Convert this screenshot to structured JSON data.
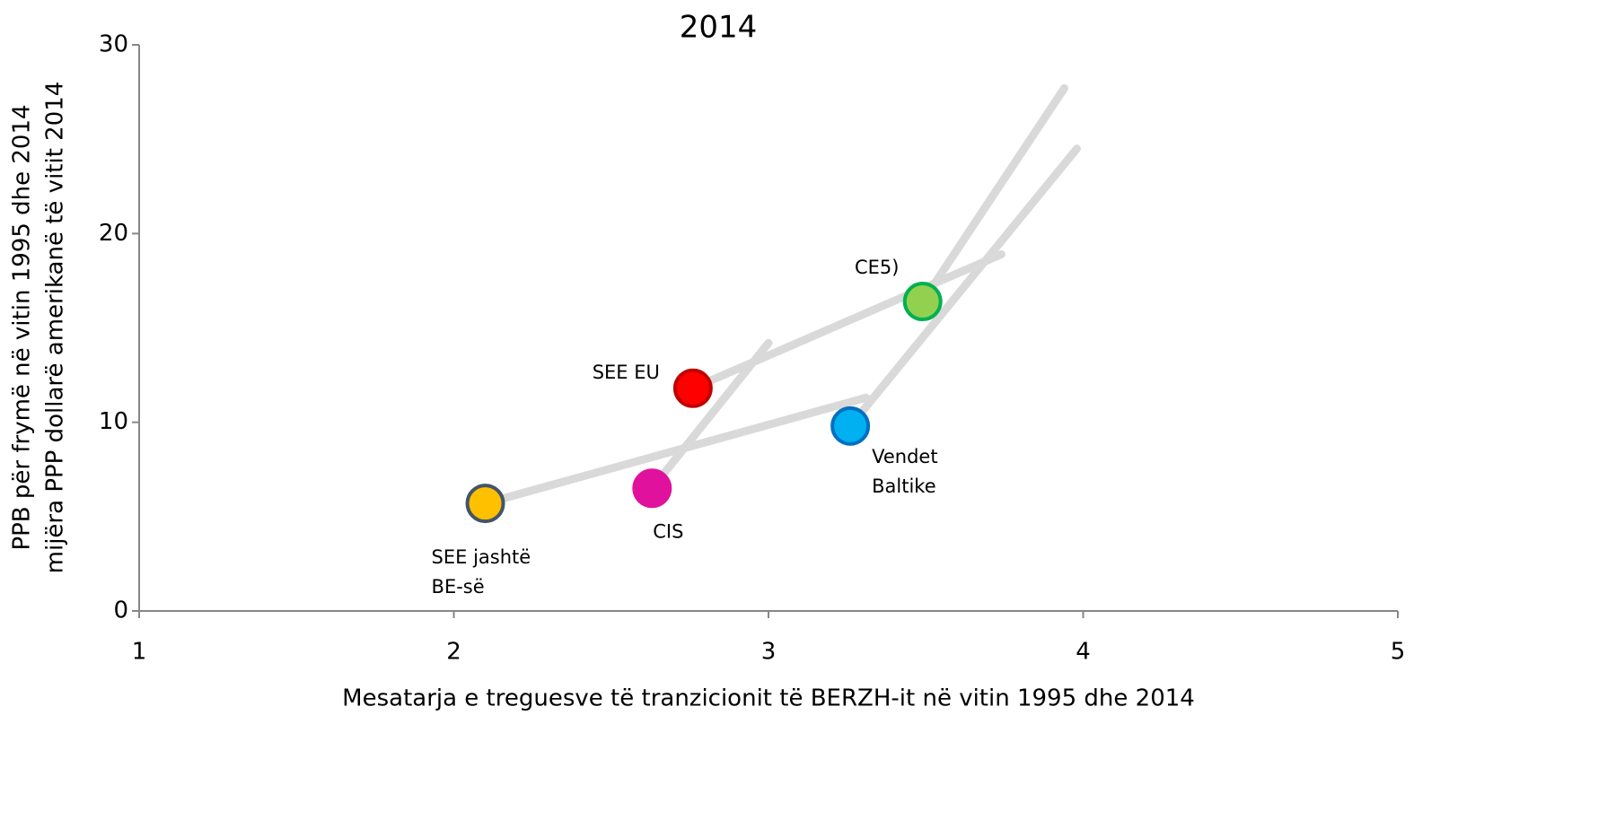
{
  "chart_data": {
    "type": "scatter",
    "title": "2014",
    "x_label": "Mesatarja e treguesve të tranzicionit të BERZH-it në vitin 1995 dhe 2014",
    "y_label": [
      "PPB për frymë në vitin 1995 dhe 2014",
      "mijëra PPP dollarë amerikanë të vitit 2014"
    ],
    "xlim": [
      1,
      5
    ],
    "xticks": [
      1,
      2,
      3,
      4,
      5
    ],
    "ylim": [
      0,
      30
    ],
    "yticks": [
      0,
      10,
      20,
      30
    ],
    "line_color": "#d9d9d9",
    "series": [
      {
        "name": [
          "SEE jashtë",
          "BE-së"
        ],
        "color": "#ffc000",
        "edge": "#44546a",
        "x": [
          2.1,
          3.31
        ],
        "y": [
          5.7,
          11.3
        ]
      },
      {
        "name": [
          "CIS"
        ],
        "color": "#e0119d",
        "edge": "#e0119d",
        "x": [
          2.63,
          3.0
        ],
        "y": [
          6.5,
          14.2
        ]
      },
      {
        "name": [
          "SEE EU"
        ],
        "color": "#ff0000",
        "edge": "#c00000",
        "x": [
          2.76,
          3.74
        ],
        "y": [
          11.8,
          18.9
        ]
      },
      {
        "name": [
          "Vendet",
          "Baltike"
        ],
        "color": "#00b0f0",
        "edge": "#0070c0",
        "x": [
          3.26,
          3.98
        ],
        "y": [
          9.8,
          24.5
        ]
      },
      {
        "name": [
          "CE5)"
        ],
        "color": "#92d050",
        "edge": "#00b050",
        "x": [
          3.49,
          3.94
        ],
        "y": [
          16.4,
          27.7
        ]
      }
    ]
  }
}
